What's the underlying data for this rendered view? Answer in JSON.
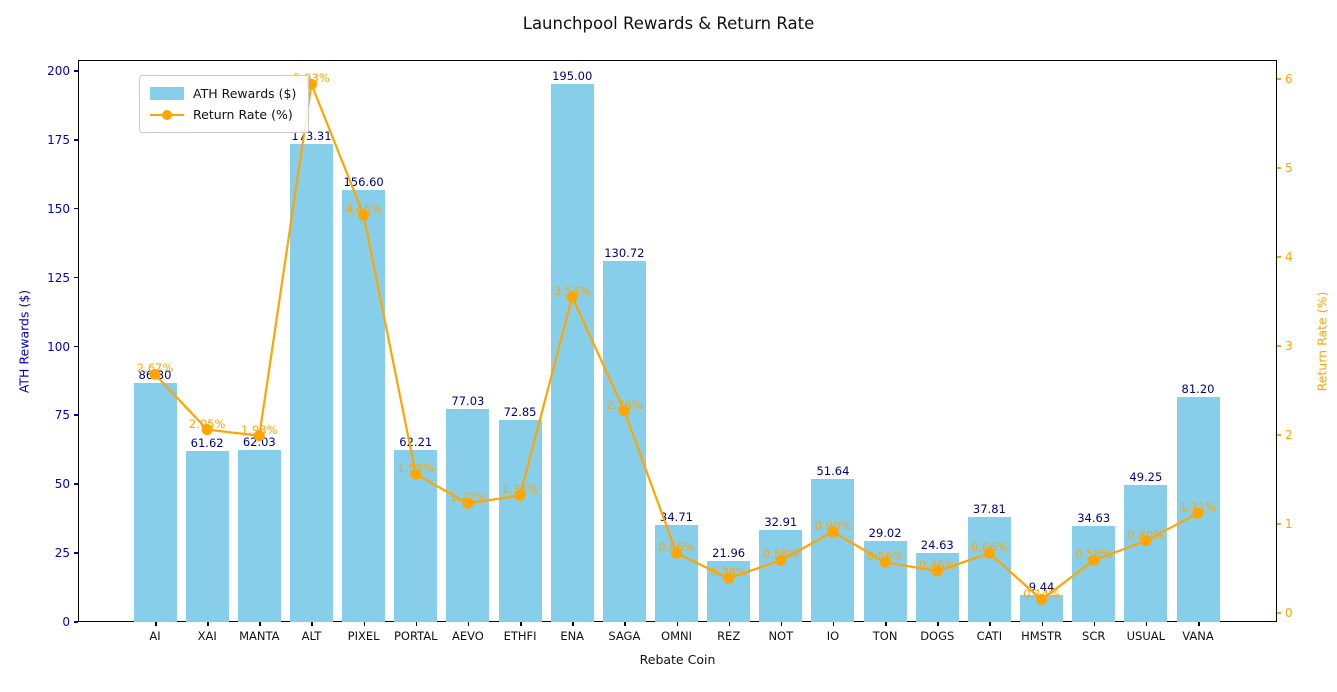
{
  "title": "Launchpool Rewards & Return Rate",
  "legend": {
    "bar_label": "ATH Rewards ($)",
    "line_label": "Return Rate (%)"
  },
  "axes": {
    "x_label": "Rebate Coin",
    "y_left_label": "ATH Rewards ($)",
    "y_right_label": "Return Rate (%)",
    "y_left_ticks": [
      0,
      25,
      50,
      75,
      100,
      125,
      150,
      175,
      200
    ],
    "y_right_ticks": [
      0,
      1,
      2,
      3,
      4,
      5,
      6
    ]
  },
  "colors": {
    "bar": "#87CEEB",
    "line": "#FFA500",
    "left_axis_text": "#0000CD",
    "bar_value_text": "#00008B",
    "right_axis_text": "#FFA500"
  },
  "chart_data": {
    "type": "bar",
    "subtype": "bar-and-line-dual-axis",
    "title": "Launchpool Rewards & Return Rate",
    "xlabel": "Rebate Coin",
    "ylabel_left": "ATH Rewards ($)",
    "ylabel_right": "Return Rate (%)",
    "ylim_left": [
      0,
      204
    ],
    "ylim_right": [
      -0.1,
      6.2
    ],
    "grid": false,
    "legend_position": "upper left",
    "categories": [
      "AI",
      "XAI",
      "MANTA",
      "ALT",
      "PIXEL",
      "PORTAL",
      "AEVO",
      "ETHFI",
      "ENA",
      "SAGA",
      "OMNI",
      "REZ",
      "NOT",
      "IO",
      "TON",
      "DOGS",
      "CATI",
      "HMSTR",
      "SCR",
      "USUAL",
      "VANA"
    ],
    "series": [
      {
        "name": "ATH Rewards ($)",
        "type": "bar",
        "axis": "left",
        "values": [
          86.3,
          61.62,
          62.03,
          173.31,
          156.6,
          62.21,
          77.03,
          72.85,
          195.0,
          130.72,
          34.71,
          21.96,
          32.91,
          51.64,
          29.02,
          24.63,
          37.81,
          9.44,
          34.63,
          49.25,
          81.2
        ],
        "labels": [
          "86.30",
          "61.62",
          "62.03",
          "173.31",
          "156.60",
          "62.21",
          "77.03",
          "72.85",
          "195.00",
          "130.72",
          "34.71",
          "21.96",
          "32.91",
          "51.64",
          "29.02",
          "24.63",
          "37.81",
          "9.44",
          "34.63",
          "49.25",
          "81.20"
        ]
      },
      {
        "name": "Return Rate (%)",
        "type": "line",
        "axis": "right",
        "values": [
          2.67,
          2.05,
          1.98,
          5.93,
          4.46,
          1.55,
          1.22,
          1.31,
          3.54,
          2.26,
          0.66,
          0.38,
          0.58,
          0.9,
          0.56,
          0.46,
          0.66,
          0.14,
          0.58,
          0.8,
          1.11
        ],
        "labels": [
          "2.67%",
          "2.05%",
          "1.98%",
          "5.93%",
          "4.46%",
          "1.55%",
          "1.22%",
          "1.31%",
          "3.54%",
          "2.26%",
          "0.66%",
          "0.38%",
          "0.58%",
          "0.90%",
          "0.56%",
          "0.46%",
          "0.66%",
          "0.14%",
          "0.58%",
          "0.80%",
          "1.11%"
        ]
      }
    ]
  }
}
